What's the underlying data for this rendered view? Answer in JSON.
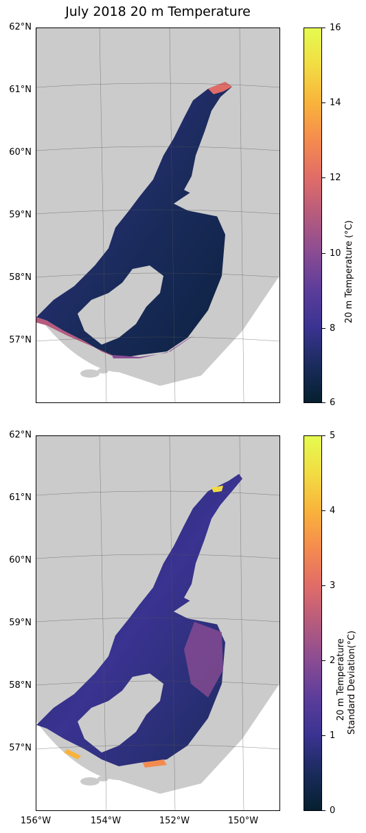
{
  "title": "July 2018 20 m Temperature",
  "colors": {
    "land": "#cbcbcb",
    "ocean_unmodeled": "#ffffff",
    "grid": "#555555",
    "colormap": [
      "#05202f",
      "#1a2b5c",
      "#3a3391",
      "#5c3d9b",
      "#8a4c93",
      "#b55b7e",
      "#e06c68",
      "#f48b4e",
      "#f9b33b",
      "#f2dc43",
      "#e5fb50"
    ]
  },
  "latitude_labels": [
    "62°N",
    "61°N",
    "60°N",
    "59°N",
    "58°N",
    "57°N"
  ],
  "longitude_labels": [
    "156°W",
    "154°W",
    "152°W",
    "150°W"
  ],
  "maps": [
    {
      "name": "mean-temperature",
      "colorbar": {
        "label": "20 m Temperature (°C)",
        "label_line2": "",
        "ticks": [
          "16",
          "14",
          "12",
          "10",
          "8",
          "6"
        ],
        "range": [
          6,
          16
        ]
      }
    },
    {
      "name": "temperature-std",
      "colorbar": {
        "label": "20 m Temperature",
        "label_line2": "Standard Deviation(°C)",
        "ticks": [
          "5",
          "4",
          "3",
          "2",
          "1",
          "0"
        ],
        "range": [
          0,
          5
        ]
      }
    }
  ]
}
